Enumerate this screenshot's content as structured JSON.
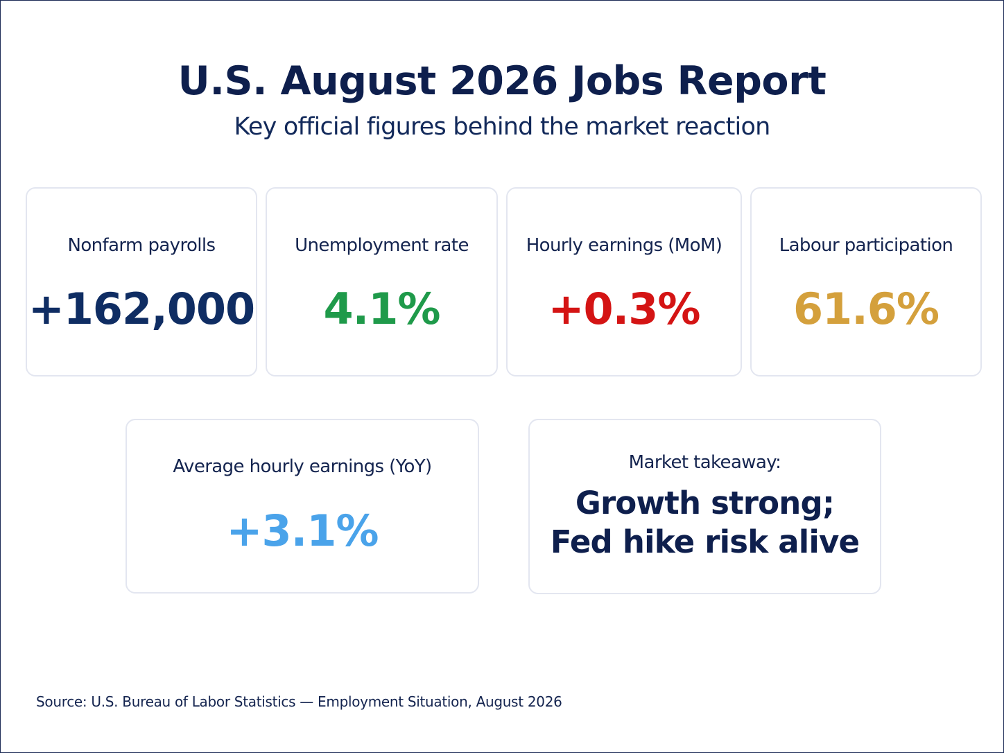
{
  "header": {
    "title": "U.S. August 2026 Jobs Report",
    "subtitle": "Key official figures behind the market reaction"
  },
  "metrics": [
    {
      "label": "Nonfarm payrolls",
      "value": "+162,000",
      "color": "#0f2d63"
    },
    {
      "label": "Unemployment rate",
      "value": "4.1%",
      "color": "#1f9a4a"
    },
    {
      "label": "Hourly earnings (MoM)",
      "value": "+0.3%",
      "color": "#d41414"
    },
    {
      "label": "Labour participation",
      "value": "61.6%",
      "color": "#d4a03c"
    },
    {
      "label": "Average hourly earnings (YoY)",
      "value": "+3.1%",
      "color": "#4aa3ea"
    }
  ],
  "takeaway": {
    "label": "Market takeaway:",
    "line1": "Growth strong;",
    "line2": "Fed hike risk alive"
  },
  "footer": {
    "source": "Source: U.S. Bureau of Labor Statistics — Employment Situation, August 2026"
  }
}
